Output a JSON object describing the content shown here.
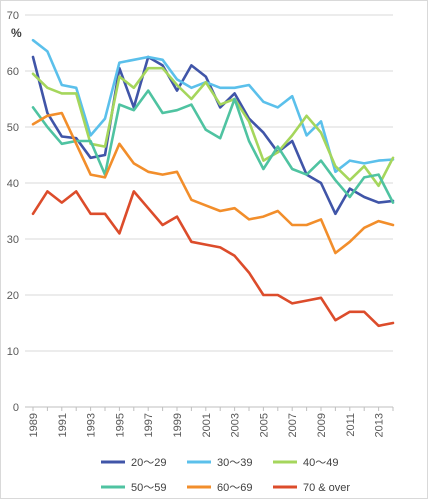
{
  "chart_data": {
    "type": "line",
    "unit_label": "%",
    "ylim": [
      0,
      70
    ],
    "y_ticks": [
      "0",
      "10",
      "20",
      "30",
      "40",
      "50",
      "60",
      "70"
    ],
    "x": [
      1989,
      1990,
      1991,
      1992,
      1993,
      1994,
      1995,
      1996,
      1997,
      1998,
      1999,
      2000,
      2001,
      2002,
      2003,
      2004,
      2005,
      2006,
      2007,
      2008,
      2009,
      2010,
      2011,
      2012,
      2013,
      2014
    ],
    "x_tick_labels": [
      "1989",
      "1991",
      "1993",
      "1995",
      "1997",
      "1999",
      "2001",
      "2003",
      "2005",
      "2007",
      "2009",
      "2011",
      "2013"
    ],
    "grid": "horizontal",
    "legend_position": "bottom",
    "series": [
      {
        "name": "20～29",
        "color": "#4055a8",
        "values": [
          62.5,
          52.5,
          48.3,
          48.0,
          44.5,
          45.0,
          60.5,
          53.5,
          62.5,
          61.0,
          56.5,
          61.0,
          59.0,
          53.5,
          56.0,
          51.5,
          49.0,
          45.5,
          47.5,
          41.5,
          40.0,
          34.5,
          39.0,
          37.5,
          36.5,
          36.8
        ]
      },
      {
        "name": "30～39",
        "color": "#5bc0eb",
        "values": [
          65.5,
          63.5,
          57.5,
          57.0,
          48.5,
          51.5,
          61.5,
          62.0,
          62.5,
          62.0,
          58.5,
          57.0,
          58.0,
          57.0,
          57.0,
          57.5,
          54.5,
          53.5,
          55.5,
          48.5,
          51.0,
          42.0,
          44.0,
          43.5,
          44.0,
          44.2
        ]
      },
      {
        "name": "40～49",
        "color": "#a5d65c",
        "values": [
          59.5,
          57.0,
          56.0,
          56.0,
          47.0,
          46.5,
          59.0,
          57.0,
          60.5,
          60.5,
          57.5,
          55.0,
          58.0,
          54.0,
          55.0,
          51.0,
          44.0,
          45.5,
          48.5,
          52.0,
          49.0,
          43.0,
          40.5,
          43.0,
          39.5,
          44.5
        ]
      },
      {
        "name": "50～59",
        "color": "#4fc3a1",
        "values": [
          53.5,
          50.0,
          47.0,
          47.5,
          47.5,
          41.5,
          54.0,
          53.0,
          56.5,
          52.5,
          53.0,
          54.0,
          49.5,
          48.0,
          55.0,
          47.5,
          42.5,
          46.5,
          42.5,
          41.5,
          44.0,
          40.5,
          37.5,
          41.0,
          41.5,
          36.5
        ]
      },
      {
        "name": "60～69",
        "color": "#f28e2b",
        "values": [
          50.5,
          52.0,
          52.5,
          47.0,
          41.5,
          41.0,
          47.0,
          43.5,
          42.0,
          41.5,
          42.0,
          37.0,
          36.0,
          35.0,
          35.5,
          33.5,
          34.0,
          35.0,
          32.5,
          32.5,
          33.5,
          27.5,
          29.5,
          32.0,
          33.2,
          32.5
        ]
      },
      {
        "name": "70 & over",
        "color": "#dc4c2b",
        "values": [
          34.5,
          38.5,
          36.5,
          38.5,
          34.5,
          34.5,
          31.0,
          38.5,
          35.5,
          32.5,
          34.0,
          29.5,
          29.0,
          28.5,
          27.0,
          24.0,
          20.0,
          20.0,
          18.5,
          19.0,
          19.5,
          15.5,
          17.0,
          17.0,
          14.5,
          15.0
        ]
      }
    ]
  }
}
